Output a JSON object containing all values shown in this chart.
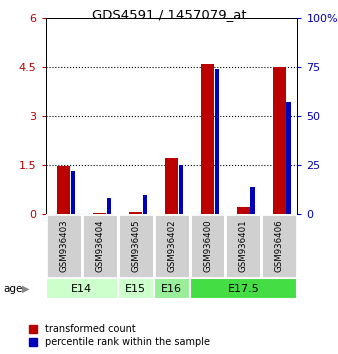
{
  "title": "GDS4591 / 1457079_at",
  "samples": [
    "GSM936403",
    "GSM936404",
    "GSM936405",
    "GSM936402",
    "GSM936400",
    "GSM936401",
    "GSM936406"
  ],
  "transformed_count": [
    1.48,
    0.04,
    0.06,
    1.73,
    4.58,
    0.22,
    4.5
  ],
  "percentile_rank_pct": [
    22,
    8,
    10,
    25,
    74,
    14,
    57
  ],
  "age_groups": [
    {
      "label": "E14",
      "start": 0,
      "end": 2,
      "color": "#ccffcc"
    },
    {
      "label": "E15",
      "start": 2,
      "end": 3,
      "color": "#ccffcc"
    },
    {
      "label": "E16",
      "start": 3,
      "end": 4,
      "color": "#99ee99"
    },
    {
      "label": "E17.5",
      "start": 4,
      "end": 7,
      "color": "#44dd44"
    }
  ],
  "ylim_left": [
    0,
    6
  ],
  "ylim_right": [
    0,
    100
  ],
  "yticks_left": [
    0,
    1.5,
    3,
    4.5,
    6
  ],
  "ytick_left_labels": [
    "0",
    "1.5",
    "3",
    "4.5",
    "6"
  ],
  "yticks_right": [
    0,
    25,
    50,
    75,
    100
  ],
  "ytick_right_labels": [
    "0",
    "25",
    "50",
    "75",
    "100%"
  ],
  "bar_color_red": "#bb0000",
  "bar_color_blue": "#0000bb",
  "red_bar_width": 0.35,
  "blue_bar_width": 0.12,
  "sample_box_color": "#d0d0d0",
  "sample_box_edge": "#ffffff",
  "legend_red_label": "transformed count",
  "legend_blue_label": "percentile rank within the sample",
  "age_label": "age",
  "age_arrow_color": "#888888"
}
